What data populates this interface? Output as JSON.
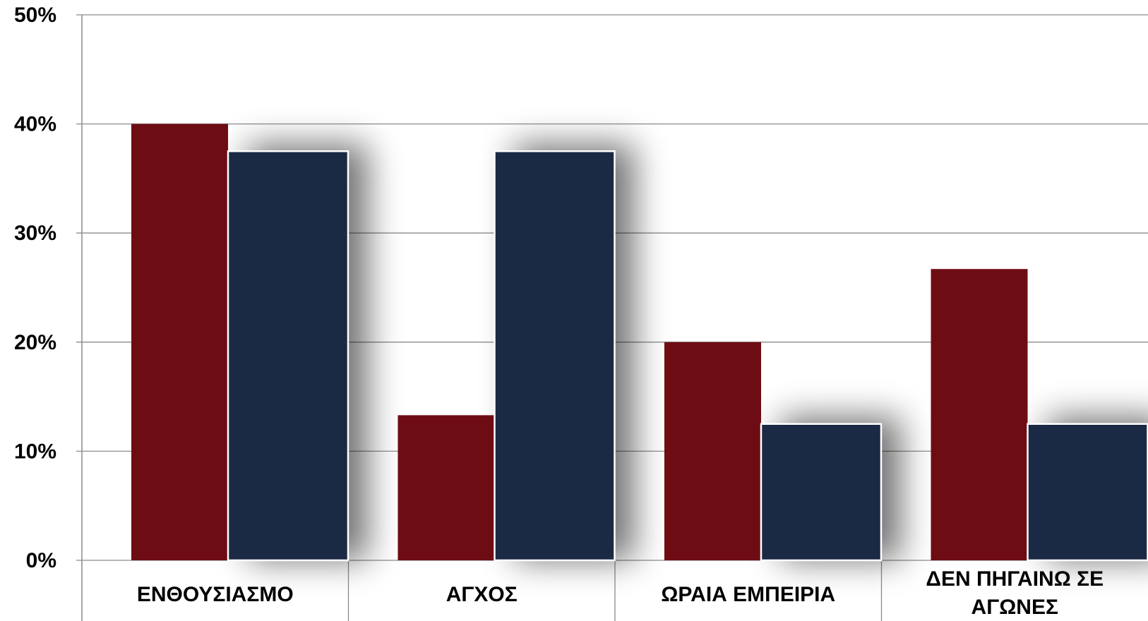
{
  "chart_data": {
    "type": "bar",
    "categories": [
      [
        "ΕΝΘΟΥΣΙΑΣΜΟ"
      ],
      [
        "ΑΓΧΟΣ"
      ],
      [
        "ΩΡΑΙΑ ΕΜΠΕΙΡΙΑ"
      ],
      [
        "ΔΕΝ ΠΗΓΑΙΝΩ ΣΕ",
        "ΑΓΩΝΕΣ"
      ]
    ],
    "series": [
      {
        "values": [
          40.0,
          13.3,
          20.0,
          26.7
        ],
        "color": "#6e0c14"
      },
      {
        "values": [
          37.5,
          37.5,
          12.5,
          12.5
        ],
        "color": "#1b2a44"
      }
    ],
    "y_ticks": [
      "0%",
      "10%",
      "20%",
      "30%",
      "40%",
      "50%"
    ],
    "ylim": [
      0,
      50
    ],
    "grid": true,
    "legend": "none"
  }
}
